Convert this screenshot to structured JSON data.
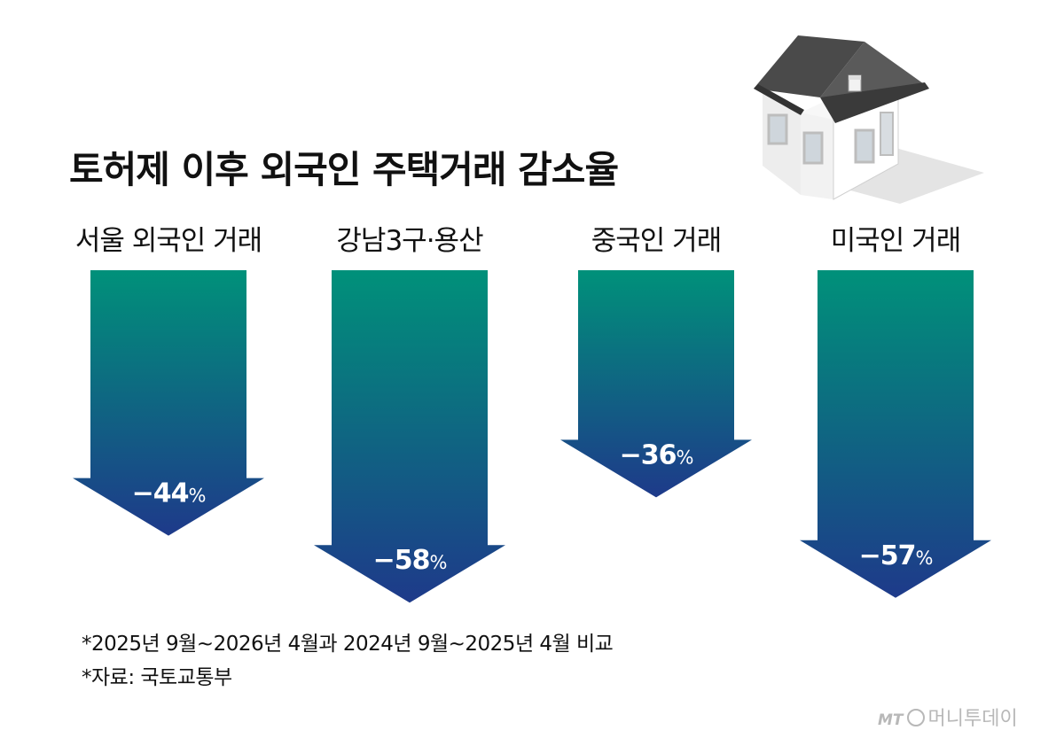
{
  "title": "토허제 이후 외국인 주택거래 감소율",
  "notes": [
    "*2025년 9월~2026년 4월과 2024년 9월~2025년 4월 비교",
    "*자료: 국토교통부"
  ],
  "brand": {
    "mt": "MT",
    "name": "머니투데이"
  },
  "colors": {
    "arrow_top": "#00917a",
    "arrow_bottom": "#1e3a8a"
  },
  "chart_data": {
    "type": "bar",
    "title": "토허제 이후 외국인 주택거래 감소율",
    "categories": [
      "서울 외국인 거래",
      "강남3구·용산",
      "중국인 거래",
      "미국인 거래"
    ],
    "values": [
      -44,
      -58,
      -36,
      -57
    ],
    "value_labels": [
      "−44",
      "−58",
      "−36",
      "−57"
    ],
    "unit": "%"
  }
}
